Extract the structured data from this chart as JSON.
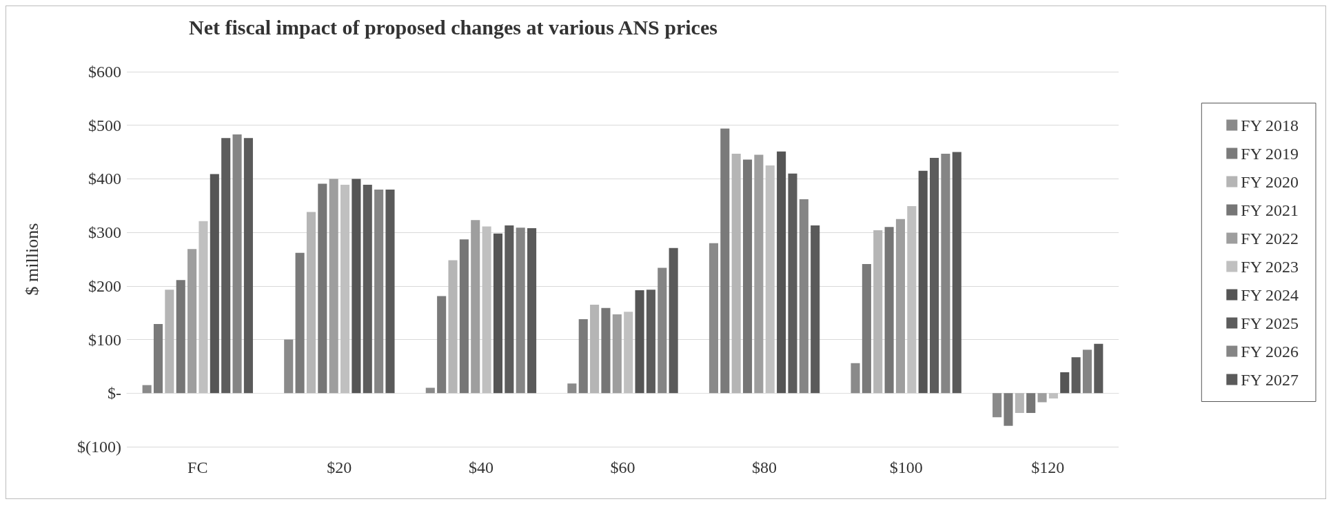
{
  "chart_data": {
    "type": "bar",
    "title": "Net fiscal impact of proposed changes at various ANS prices",
    "ylabel": "$ millions",
    "categories": [
      "FC",
      "$20",
      "$40",
      "$60",
      "$80",
      "$100",
      "$120"
    ],
    "series": [
      {
        "name": "FY 2018",
        "color": "#8a8a8a",
        "values": [
          15,
          100,
          10,
          18,
          280,
          56,
          -45
        ]
      },
      {
        "name": "FY 2019",
        "color": "#7a7a7a",
        "values": [
          129,
          262,
          181,
          138,
          494,
          241,
          -61
        ]
      },
      {
        "name": "FY 2020",
        "color": "#b5b5b5",
        "values": [
          193,
          338,
          248,
          165,
          447,
          304,
          -37
        ]
      },
      {
        "name": "FY 2021",
        "color": "#767676",
        "values": [
          211,
          391,
          287,
          159,
          436,
          310,
          -37
        ]
      },
      {
        "name": "FY 2022",
        "color": "#9e9e9e",
        "values": [
          269,
          400,
          323,
          147,
          445,
          325,
          -17
        ]
      },
      {
        "name": "FY 2023",
        "color": "#c0c0c0",
        "values": [
          321,
          389,
          311,
          152,
          425,
          349,
          -10
        ]
      },
      {
        "name": "FY 2024",
        "color": "#555555",
        "values": [
          409,
          400,
          298,
          192,
          451,
          415,
          39
        ]
      },
      {
        "name": "FY 2025",
        "color": "#5c5c5c",
        "values": [
          476,
          389,
          313,
          193,
          410,
          439,
          67
        ]
      },
      {
        "name": "FY 2026",
        "color": "#858585",
        "values": [
          483,
          380,
          309,
          234,
          362,
          447,
          81
        ]
      },
      {
        "name": "FY 2027",
        "color": "#5a5a5a",
        "values": [
          476,
          380,
          308,
          271,
          313,
          450,
          92
        ]
      }
    ],
    "ylim": [
      -100,
      600
    ],
    "yticks": [
      {
        "value": -100,
        "label": "$(100)"
      },
      {
        "value": 0,
        "label": "$-"
      },
      {
        "value": 100,
        "label": "$100"
      },
      {
        "value": 200,
        "label": "$200"
      },
      {
        "value": 300,
        "label": "$300"
      },
      {
        "value": 400,
        "label": "$400"
      },
      {
        "value": 500,
        "label": "$500"
      },
      {
        "value": 600,
        "label": "$600"
      }
    ],
    "grid": "y",
    "legend": "right"
  }
}
